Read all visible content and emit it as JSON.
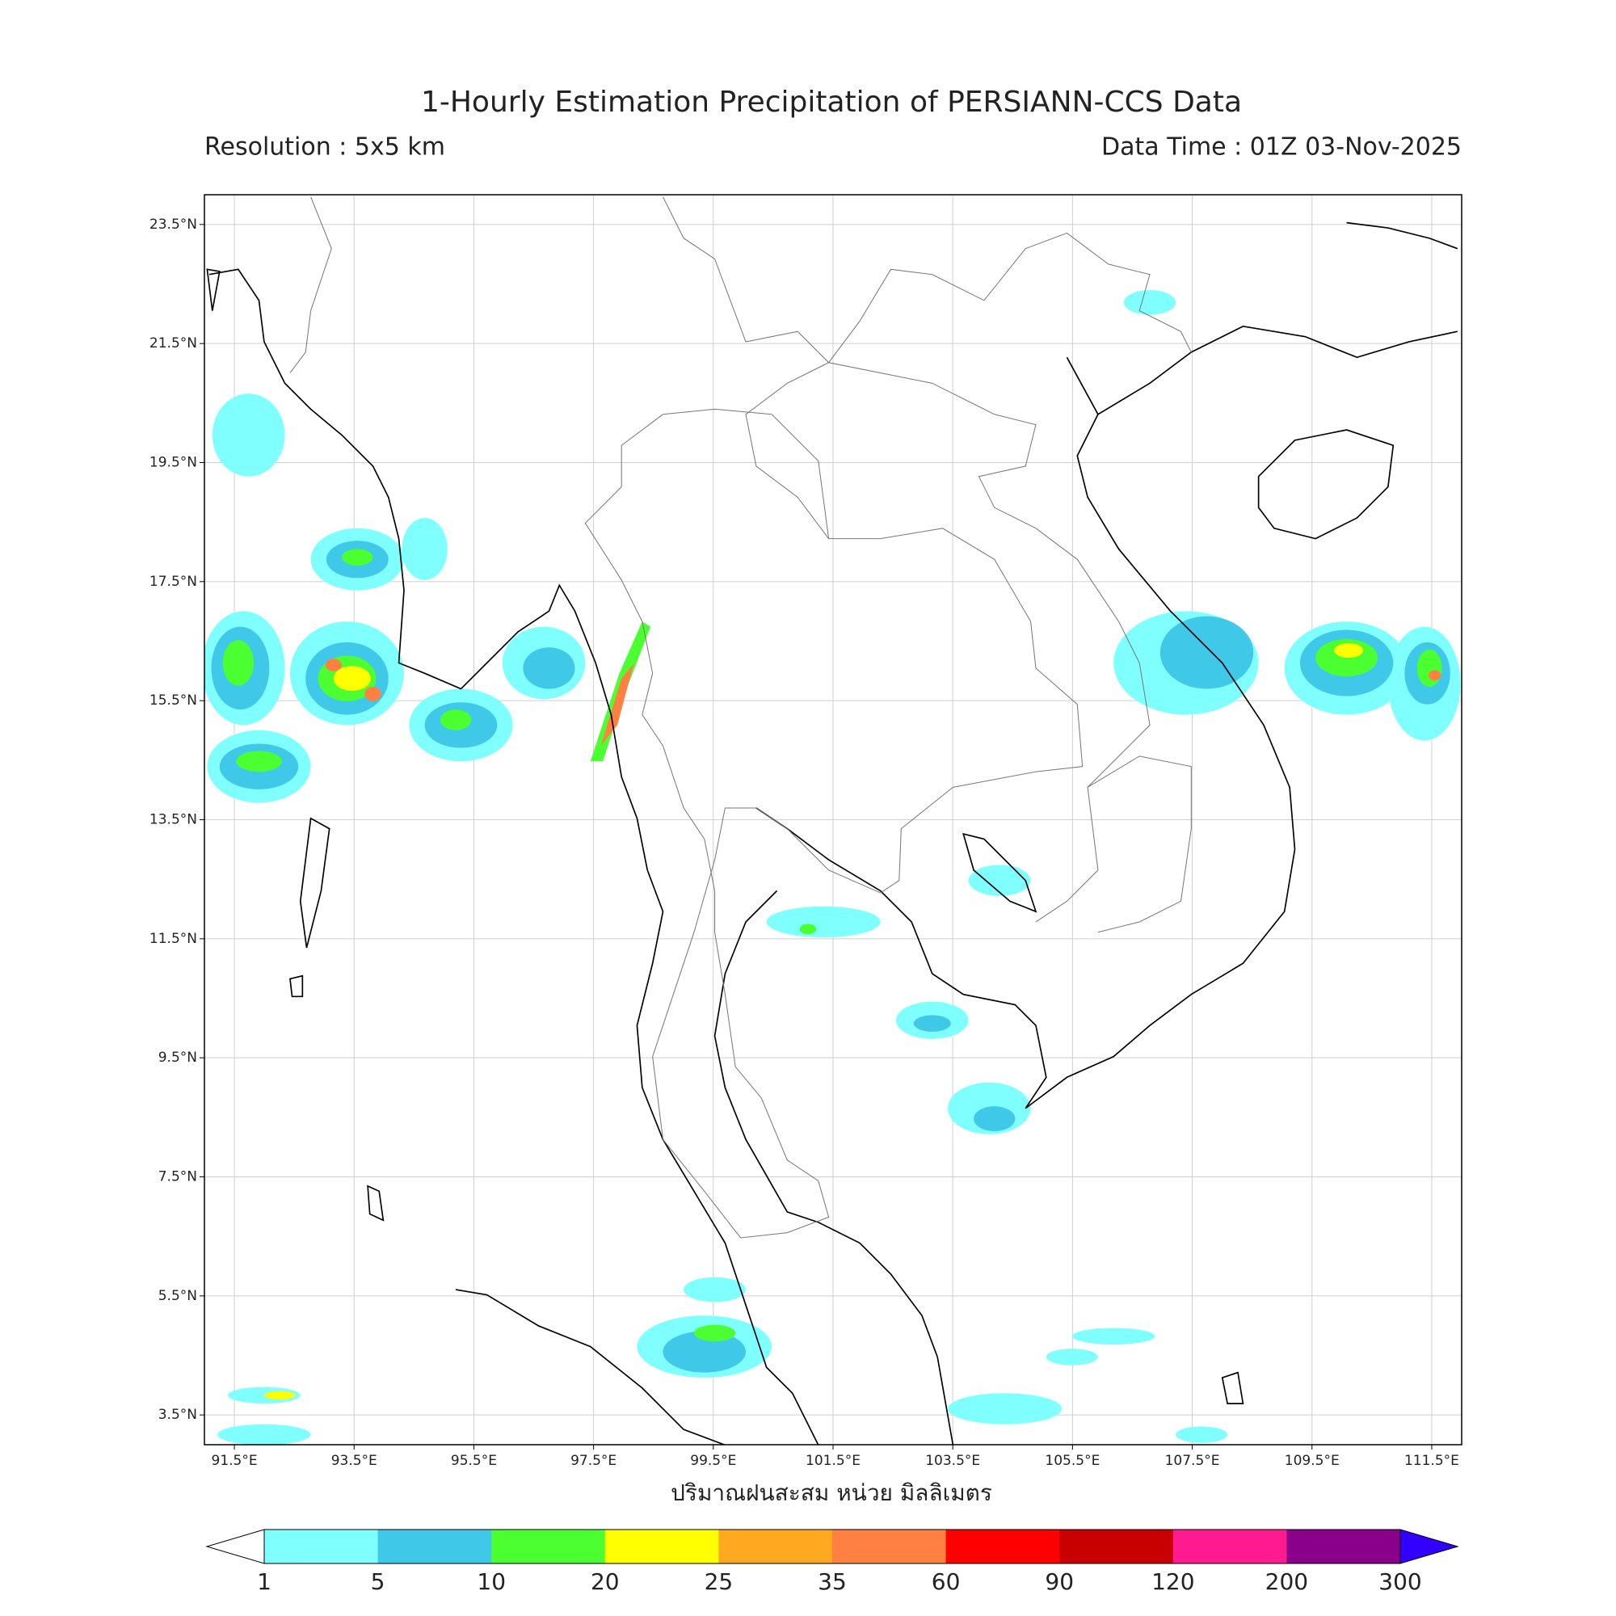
{
  "header": {
    "title": "1-Hourly Estimation Precipitation of PERSIANN-CCS Data",
    "resolution": "Resolution : 5x5 km",
    "data_time": "Data Time : 01Z 03-Nov-2025"
  },
  "map": {
    "xlim": [
      91,
      112
    ],
    "ylim": [
      3,
      24
    ],
    "grid": true,
    "xticks": [
      {
        "value": 91.5,
        "label": "91.5°E"
      },
      {
        "value": 93.5,
        "label": "93.5°E"
      },
      {
        "value": 95.5,
        "label": "95.5°E"
      },
      {
        "value": 97.5,
        "label": "97.5°E"
      },
      {
        "value": 99.5,
        "label": "99.5°E"
      },
      {
        "value": 101.5,
        "label": "101.5°E"
      },
      {
        "value": 103.5,
        "label": "103.5°E"
      },
      {
        "value": 105.5,
        "label": "105.5°E"
      },
      {
        "value": 107.5,
        "label": "107.5°E"
      },
      {
        "value": 109.5,
        "label": "109.5°E"
      },
      {
        "value": 111.5,
        "label": "111.5°E"
      }
    ],
    "yticks": [
      {
        "value": 3.5,
        "label": "3.5°N"
      },
      {
        "value": 5.5,
        "label": "5.5°N"
      },
      {
        "value": 7.5,
        "label": "7.5°N"
      },
      {
        "value": 9.5,
        "label": "9.5°N"
      },
      {
        "value": 11.5,
        "label": "11.5°N"
      },
      {
        "value": 13.5,
        "label": "13.5°N"
      },
      {
        "value": 15.5,
        "label": "15.5°N"
      },
      {
        "value": 17.5,
        "label": "17.5°N"
      },
      {
        "value": 19.5,
        "label": "19.5°N"
      },
      {
        "value": 21.5,
        "label": "21.5°N"
      },
      {
        "value": 23.5,
        "label": "23.5°N"
      }
    ],
    "xlabel": "ปริมาณฝนสะสม หน่วย มิลลิเมตร"
  },
  "colorbar": {
    "levels": [
      1,
      5,
      10,
      20,
      25,
      35,
      60,
      90,
      120,
      200,
      300
    ],
    "colors": [
      "#80ffff",
      "#40c8e8",
      "#4cff30",
      "#ffff00",
      "#ffa820",
      "#ff8040",
      "#ff0000",
      "#c80000",
      "#ff1a90",
      "#8b008b"
    ],
    "under_color": "#ffffff",
    "over_color": "#3300ff"
  }
}
